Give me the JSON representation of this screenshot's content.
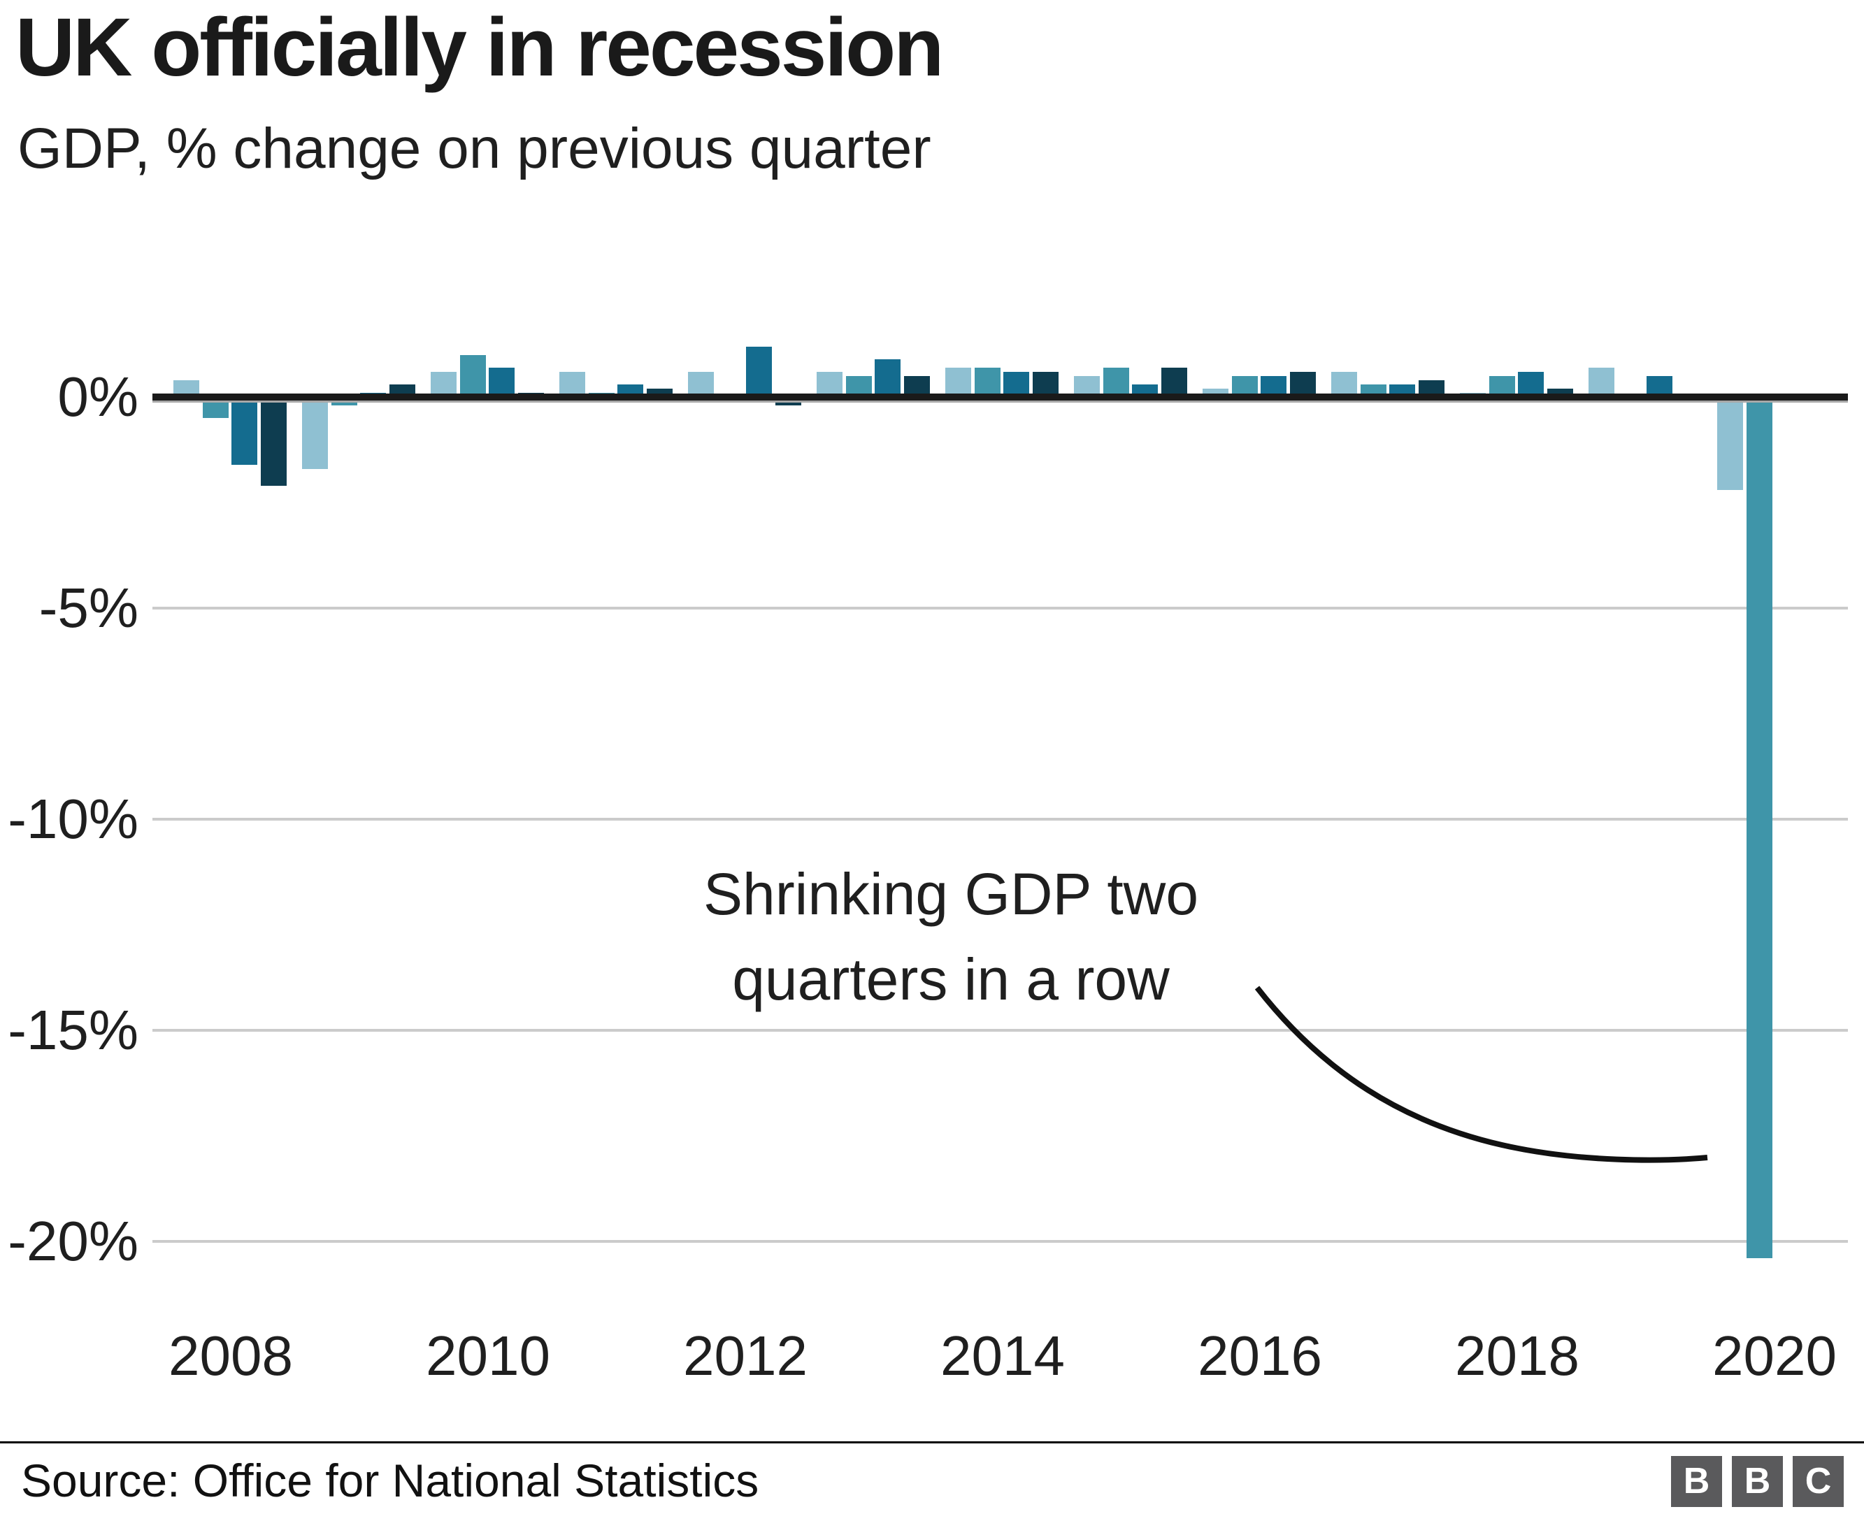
{
  "header": {
    "title": "UK officially in recession",
    "subtitle": "GDP, % change on previous quarter"
  },
  "annotation": {
    "line1": "Shrinking GDP two",
    "line2": "quarters in a row"
  },
  "footer": {
    "source": "Source: Office for National Statistics",
    "logo_letters": [
      "B",
      "B",
      "C"
    ]
  },
  "colors": {
    "quarter_cycle": [
      "#8fc0d2",
      "#3f95a9",
      "#146c8f",
      "#0e3d50"
    ],
    "grid": "#cbcbcb",
    "axis": "#1a1a1a",
    "text": "#222222",
    "logo_background": "#5a5a5c",
    "big_drop_bar": "#3f95a9"
  },
  "chart_data": {
    "type": "bar",
    "title": "UK officially in recession",
    "subtitle": "GDP, % change on previous quarter",
    "unit": "% change on previous quarter",
    "grid": "horizontal",
    "legend": "none",
    "ylim": [
      -21,
      1.5
    ],
    "y_ticks": [
      0,
      -5,
      -10,
      -15,
      -20
    ],
    "y_tick_labels": [
      "0%",
      "-5%",
      "-10%",
      "-15%",
      "-20%"
    ],
    "x_tick_labels": [
      "2008",
      "2010",
      "2012",
      "2014",
      "2016",
      "2018",
      "2020"
    ],
    "annotation_text": "Shrinking GDP two quarters in a row",
    "quarters": [
      {
        "period": "2008 Q1",
        "value": 0.4
      },
      {
        "period": "2008 Q2",
        "value": -0.5
      },
      {
        "period": "2008 Q3",
        "value": -1.6
      },
      {
        "period": "2008 Q4",
        "value": -2.1
      },
      {
        "period": "2009 Q1",
        "value": -1.7
      },
      {
        "period": "2009 Q2",
        "value": -0.2
      },
      {
        "period": "2009 Q3",
        "value": 0.1
      },
      {
        "period": "2009 Q4",
        "value": 0.3
      },
      {
        "period": "2010 Q1",
        "value": 0.6
      },
      {
        "period": "2010 Q2",
        "value": 1.0
      },
      {
        "period": "2010 Q3",
        "value": 0.7
      },
      {
        "period": "2010 Q4",
        "value": 0.1
      },
      {
        "period": "2011 Q1",
        "value": 0.6
      },
      {
        "period": "2011 Q2",
        "value": 0.1
      },
      {
        "period": "2011 Q3",
        "value": 0.3
      },
      {
        "period": "2011 Q4",
        "value": 0.2
      },
      {
        "period": "2012 Q1",
        "value": 0.6
      },
      {
        "period": "2012 Q2",
        "value": -0.1
      },
      {
        "period": "2012 Q3",
        "value": 1.2
      },
      {
        "period": "2012 Q4",
        "value": -0.2
      },
      {
        "period": "2013 Q1",
        "value": 0.6
      },
      {
        "period": "2013 Q2",
        "value": 0.5
      },
      {
        "period": "2013 Q3",
        "value": 0.9
      },
      {
        "period": "2013 Q4",
        "value": 0.5
      },
      {
        "period": "2014 Q1",
        "value": 0.7
      },
      {
        "period": "2014 Q2",
        "value": 0.7
      },
      {
        "period": "2014 Q3",
        "value": 0.6
      },
      {
        "period": "2014 Q4",
        "value": 0.6
      },
      {
        "period": "2015 Q1",
        "value": 0.5
      },
      {
        "period": "2015 Q2",
        "value": 0.7
      },
      {
        "period": "2015 Q3",
        "value": 0.3
      },
      {
        "period": "2015 Q4",
        "value": 0.7
      },
      {
        "period": "2016 Q1",
        "value": 0.2
      },
      {
        "period": "2016 Q2",
        "value": 0.5
      },
      {
        "period": "2016 Q3",
        "value": 0.5
      },
      {
        "period": "2016 Q4",
        "value": 0.6
      },
      {
        "period": "2017 Q1",
        "value": 0.6
      },
      {
        "period": "2017 Q2",
        "value": 0.3
      },
      {
        "period": "2017 Q3",
        "value": 0.3
      },
      {
        "period": "2017 Q4",
        "value": 0.4
      },
      {
        "period": "2018 Q1",
        "value": 0.1
      },
      {
        "period": "2018 Q2",
        "value": 0.5
      },
      {
        "period": "2018 Q3",
        "value": 0.6
      },
      {
        "period": "2018 Q4",
        "value": 0.2
      },
      {
        "period": "2019 Q1",
        "value": 0.7
      },
      {
        "period": "2019 Q2",
        "value": -0.1
      },
      {
        "period": "2019 Q3",
        "value": 0.5
      },
      {
        "period": "2019 Q4",
        "value": 0.0
      },
      {
        "period": "2020 Q1",
        "value": -2.2
      },
      {
        "period": "2020 Q2",
        "value": -20.4
      }
    ]
  }
}
